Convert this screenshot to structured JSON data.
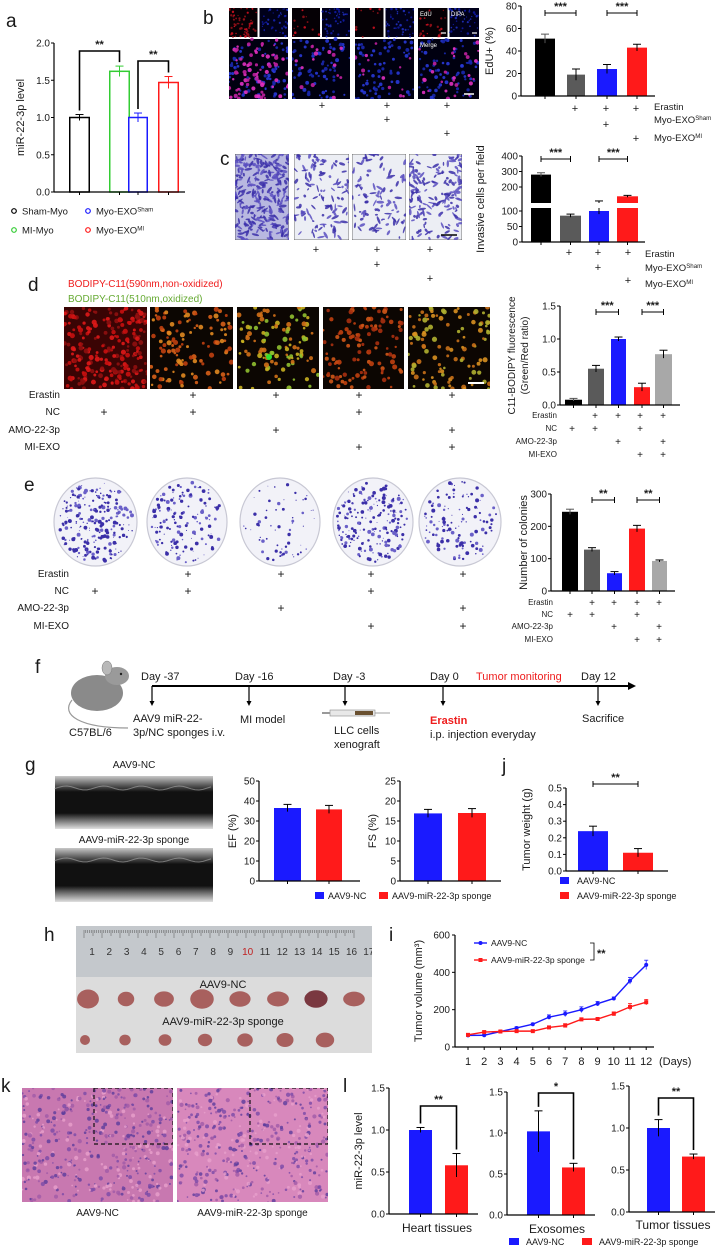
{
  "panel_letters": [
    "a",
    "b",
    "c",
    "d",
    "e",
    "f",
    "g",
    "h",
    "i",
    "j",
    "k",
    "l"
  ],
  "palette": {
    "black": "#000000",
    "green": "#33cc33",
    "blue": "#1a1aff",
    "red": "#ff1a1a",
    "dark_gray": "#5a5a5a",
    "light_gray": "#a8a8a8",
    "crystal_violet": "#3b2fa8",
    "he_pink": "#d17bb4",
    "he_purple": "#5b3c9c",
    "tumor": "#a8605e"
  },
  "panel_a": {
    "legend": [
      {
        "text": "Sham-Myo",
        "color": "#000000"
      },
      {
        "text": "MI-Myo",
        "color": "#33cc33"
      },
      {
        "base": "Myo-EXO",
        "sup": "Sham",
        "color": "#1a1aff"
      },
      {
        "base": "Myo-EXO",
        "sup": "MI",
        "color": "#ff1a1a"
      }
    ]
  },
  "panel_b": {
    "image_labels": {
      "edu": "EdU",
      "dapi": "DIPA",
      "merge": "Merge"
    },
    "conditions": [
      {
        "label": "Erastin",
        "marks": [
          false,
          true,
          true,
          true
        ]
      },
      {
        "label": {
          "base": "Myo-EXO",
          "sup": "Sham"
        },
        "marks": [
          false,
          false,
          true,
          false
        ]
      },
      {
        "label": {
          "base": "Myo-EXO",
          "sup": "MI"
        },
        "marks": [
          false,
          false,
          false,
          true
        ]
      }
    ]
  },
  "panel_c": {
    "conditions": [
      {
        "label": "Erastin",
        "marks": [
          false,
          true,
          true,
          true
        ]
      },
      {
        "label": {
          "base": "Myo-EXO",
          "sup": "Sham"
        },
        "marks": [
          false,
          false,
          true,
          false
        ]
      },
      {
        "label": {
          "base": "Myo-EXO",
          "sup": "MI"
        },
        "marks": [
          false,
          false,
          false,
          true
        ]
      }
    ]
  },
  "panel_d": {
    "legend_red": "BODIPY-C11(590nm,non-oxidized)",
    "legend_green": "BODIPY-C11(510nm,oxidized)",
    "conditions": [
      {
        "label": "Erastin",
        "marks": [
          false,
          true,
          true,
          true,
          true
        ]
      },
      {
        "label": "NC",
        "marks": [
          true,
          true,
          false,
          true,
          false
        ]
      },
      {
        "label": "AMO-22-3p",
        "marks": [
          false,
          false,
          true,
          false,
          true
        ]
      },
      {
        "label": "MI-EXO",
        "marks": [
          false,
          false,
          false,
          true,
          true
        ]
      }
    ]
  },
  "panel_e": {
    "conditions": [
      {
        "label": "Erastin",
        "marks": [
          false,
          true,
          true,
          true,
          true
        ]
      },
      {
        "label": "NC",
        "marks": [
          true,
          true,
          false,
          true,
          false
        ]
      },
      {
        "label": "AMO-22-3p",
        "marks": [
          false,
          false,
          true,
          false,
          true
        ]
      },
      {
        "label": "MI-EXO",
        "marks": [
          false,
          false,
          false,
          true,
          true
        ]
      }
    ]
  },
  "panel_f": {
    "strain": "C57BL/6",
    "days": [
      "Day -37",
      "Day -16",
      "Day -3",
      "Day 0",
      "Day 12"
    ],
    "monitoring": "Tumor monitoring",
    "events": [
      [
        "AAV9 miR-22-",
        "3p/NC sponges i.v."
      ],
      [
        "MI model"
      ],
      [
        "LLC cells",
        "xenograft"
      ],
      [
        "Erastin",
        "i.p. injection everyday"
      ],
      [
        "Sacrifice"
      ]
    ]
  },
  "panel_g": {
    "echo_labels": [
      "AAV9-NC",
      "AAV9-miR-22-3p sponge"
    ],
    "legend": [
      {
        "text": "AAV9-NC",
        "color": "#1a1aff"
      },
      {
        "text": "AAV9-miR-22-3p sponge",
        "color": "#ff1a1a"
      }
    ]
  },
  "panel_h": {
    "ruler_numbers": [
      "1",
      "2",
      "3",
      "4",
      "5",
      "6",
      "7",
      "8",
      "9",
      "10",
      "11",
      "12",
      "13",
      "14",
      "15",
      "16",
      "17"
    ],
    "highlight_number": "10",
    "group_labels": [
      "AAV9-NC",
      "AAV9-miR-22-3p sponge"
    ],
    "tumor_counts": [
      8,
      7
    ]
  },
  "panel_j": {
    "legend": [
      {
        "text": "AAV9-NC",
        "color": "#1a1aff"
      },
      {
        "text": "AAV9-miR-22-3p sponge",
        "color": "#ff1a1a"
      }
    ]
  },
  "panel_k": {
    "labels": [
      "AAV9-NC",
      "AAV9-miR-22-3p sponge"
    ]
  },
  "panel_l": {
    "legend": [
      {
        "text": "AAV9-NC",
        "color": "#1a1aff"
      },
      {
        "text": "AAV9-miR-22-3p sponge",
        "color": "#ff1a1a"
      }
    ]
  },
  "chart_data": [
    {
      "id": "a",
      "type": "bar",
      "ylabel": "miR-22-3p level",
      "categories": [
        "Sham-Myo",
        "MI-Myo",
        "Myo-EXO Sham",
        "Myo-EXO MI"
      ],
      "values": [
        1.0,
        1.62,
        1.0,
        1.47
      ],
      "errors": [
        0.04,
        0.07,
        0.06,
        0.08
      ],
      "colors": [
        "#000000",
        "#33cc33",
        "#1a1aff",
        "#ff1a1a"
      ],
      "style": "outline",
      "ylim": [
        0,
        2
      ],
      "yticks": [
        0,
        0.5,
        1.0,
        1.5,
        2.0
      ],
      "ytick_labels": [
        "0.0",
        "0.5",
        "1.0",
        "1.5",
        "2.0"
      ],
      "significance": [
        {
          "from": 0,
          "to": 1,
          "label": "**"
        },
        {
          "from": 2,
          "to": 3,
          "label": "**"
        }
      ]
    },
    {
      "id": "b",
      "type": "bar",
      "ylabel": "EdU+ (%)",
      "values": [
        51,
        19,
        24,
        43
      ],
      "errors": [
        4,
        5,
        4,
        3
      ],
      "colors": [
        "#000000",
        "#5a5a5a",
        "#1a1aff",
        "#ff1a1a"
      ],
      "ylim": [
        0,
        80
      ],
      "yticks": [
        0,
        20,
        40,
        60,
        80
      ],
      "ytick_labels": [
        "0",
        "20",
        "40",
        "60",
        "80"
      ],
      "significance": [
        {
          "from": 0,
          "to": 1,
          "label": "***"
        },
        {
          "from": 2,
          "to": 3,
          "label": "***"
        }
      ]
    },
    {
      "id": "c",
      "type": "bar",
      "ylabel": "Invasive cells per field",
      "values": [
        280,
        85,
        100,
        140
      ],
      "errors": [
        12,
        5,
        10,
        6
      ],
      "colors": [
        "#000000",
        "#5a5a5a",
        "#1a1aff",
        "#ff1a1a"
      ],
      "broken_axis": true,
      "ylim": [
        0,
        400
      ],
      "yticks": [
        0,
        50,
        100,
        200,
        300,
        400
      ],
      "ytick_labels": [
        "0",
        "50",
        "100",
        "200",
        "300",
        "400"
      ],
      "significance": [
        {
          "from": 0,
          "to": 1,
          "label": "***"
        },
        {
          "from": 2,
          "to": 3,
          "label": "***"
        }
      ]
    },
    {
      "id": "d",
      "type": "bar",
      "ylabel": [
        "C11-BODIPY fluorescence",
        "(Green/Red ratio)"
      ],
      "values": [
        0.08,
        0.55,
        1.0,
        0.27,
        0.77
      ],
      "errors": [
        0.02,
        0.05,
        0.03,
        0.06,
        0.06
      ],
      "colors": [
        "#000000",
        "#5a5a5a",
        "#1a1aff",
        "#ff1a1a",
        "#a8a8a8"
      ],
      "ylim": [
        0,
        1.5
      ],
      "yticks": [
        0,
        0.5,
        1.0,
        1.5
      ],
      "ytick_labels": [
        "0.0",
        "0.5",
        "1.0",
        "1.5"
      ],
      "significance": [
        {
          "from": 1,
          "to": 2,
          "label": "***"
        },
        {
          "from": 3,
          "to": 4,
          "label": "***"
        }
      ]
    },
    {
      "id": "e",
      "type": "bar",
      "ylabel": "Number of colonies",
      "values": [
        245,
        128,
        55,
        193,
        93
      ],
      "errors": [
        8,
        6,
        5,
        10,
        3
      ],
      "colors": [
        "#000000",
        "#5a5a5a",
        "#1a1aff",
        "#ff1a1a",
        "#a8a8a8"
      ],
      "ylim": [
        0,
        300
      ],
      "yticks": [
        0,
        100,
        200,
        300
      ],
      "ytick_labels": [
        "0",
        "100",
        "200",
        "300"
      ],
      "significance": [
        {
          "from": 1,
          "to": 2,
          "label": "**"
        },
        {
          "from": 3,
          "to": 4,
          "label": "**"
        }
      ]
    },
    {
      "id": "g_ef",
      "type": "bar",
      "ylabel": "EF (%)",
      "values": [
        36.5,
        35.8
      ],
      "errors": [
        1.8,
        2.0
      ],
      "colors": [
        "#1a1aff",
        "#ff1a1a"
      ],
      "ylim": [
        0,
        50
      ],
      "yticks": [
        0,
        10,
        20,
        30,
        40,
        50
      ],
      "ytick_labels": [
        "0",
        "10",
        "20",
        "30",
        "40",
        "50"
      ],
      "significance": []
    },
    {
      "id": "g_fs",
      "type": "bar",
      "ylabel": "FS (%)",
      "values": [
        16.9,
        17.0
      ],
      "errors": [
        1.0,
        1.1
      ],
      "colors": [
        "#1a1aff",
        "#ff1a1a"
      ],
      "ylim": [
        0,
        25
      ],
      "yticks": [
        0,
        5,
        10,
        15,
        20,
        25
      ],
      "ytick_labels": [
        "0",
        "5",
        "10",
        "15",
        "20",
        "25"
      ],
      "significance": []
    },
    {
      "id": "j",
      "type": "bar",
      "ylabel": "Tumor weight (g)",
      "values": [
        0.24,
        0.11
      ],
      "errors": [
        0.03,
        0.025
      ],
      "colors": [
        "#1a1aff",
        "#ff1a1a"
      ],
      "ylim": [
        0,
        0.5
      ],
      "yticks": [
        0,
        0.1,
        0.2,
        0.3,
        0.4,
        0.5
      ],
      "ytick_labels": [
        "0.0",
        "0.1",
        "0.2",
        "0.3",
        "0.4",
        "0.5"
      ],
      "significance": [
        {
          "from": 0,
          "to": 1,
          "label": "**"
        }
      ]
    },
    {
      "id": "i",
      "type": "line",
      "ylabel": "Tumor volume (mm³)",
      "xlabel": "(Days)",
      "x": [
        1,
        2,
        3,
        4,
        5,
        6,
        7,
        8,
        9,
        10,
        11,
        12
      ],
      "series": [
        {
          "name": "AAV9-NC",
          "color": "#1a1aff",
          "values": [
            62,
            63,
            83,
            102,
            122,
            160,
            178,
            200,
            232,
            260,
            355,
            440
          ],
          "errors": [
            5,
            5,
            5,
            6,
            6,
            12,
            15,
            15,
            12,
            8,
            18,
            25
          ]
        },
        {
          "name": "AAV9-miR-22-3p sponge",
          "color": "#ff1a1a",
          "values": [
            65,
            80,
            83,
            85,
            85,
            105,
            115,
            148,
            150,
            178,
            215,
            240
          ],
          "errors": [
            5,
            6,
            5,
            5,
            6,
            6,
            10,
            8,
            6,
            10,
            18,
            15
          ]
        }
      ],
      "ylim": [
        0,
        600
      ],
      "yticks": [
        0,
        200,
        400,
        600
      ],
      "ytick_labels": [
        "0",
        "200",
        "400",
        "600"
      ],
      "legend_position": "top-left",
      "significance_label": "**"
    },
    {
      "id": "l_heart",
      "type": "bar",
      "ylabel": "miR-22-3p level",
      "xlabel": "Heart tissues",
      "values": [
        1.0,
        0.58
      ],
      "errors": [
        0.03,
        0.14
      ],
      "colors": [
        "#1a1aff",
        "#ff1a1a"
      ],
      "ylim": [
        0,
        1.5
      ],
      "yticks": [
        0,
        0.5,
        1.0,
        1.5
      ],
      "ytick_labels": [
        "0.0",
        "0.5",
        "1.0",
        "1.5"
      ],
      "significance": [
        {
          "from": 0,
          "to": 1,
          "label": "**"
        }
      ]
    },
    {
      "id": "l_exo",
      "type": "bar",
      "ylabel": "",
      "xlabel": "Exosomes",
      "values": [
        1.02,
        0.58
      ],
      "errors": [
        0.25,
        0.05
      ],
      "colors": [
        "#1a1aff",
        "#ff1a1a"
      ],
      "ylim": [
        0,
        1.5
      ],
      "yticks": [
        0,
        0.5,
        1.0,
        1.5
      ],
      "ytick_labels": [
        "0.0",
        "0.5",
        "1.0",
        "1.5"
      ],
      "significance": [
        {
          "from": 0,
          "to": 1,
          "label": "*"
        }
      ]
    },
    {
      "id": "l_tumor",
      "type": "bar",
      "ylabel": "",
      "xlabel": "Tumor tissues",
      "values": [
        1.0,
        0.66
      ],
      "errors": [
        0.1,
        0.03
      ],
      "colors": [
        "#1a1aff",
        "#ff1a1a"
      ],
      "ylim": [
        0,
        1.5
      ],
      "yticks": [
        0,
        0.5,
        1.0,
        1.5
      ],
      "ytick_labels": [
        "0.0",
        "0.5",
        "1.0",
        "1.5"
      ],
      "significance": [
        {
          "from": 0,
          "to": 1,
          "label": "**"
        }
      ]
    }
  ]
}
